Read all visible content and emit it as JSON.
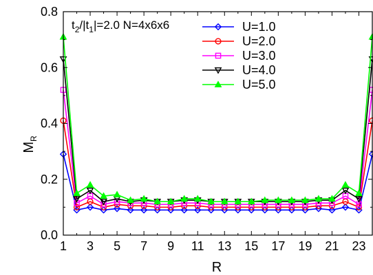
{
  "chart_data": {
    "type": "line",
    "annotation": {
      "t_label": "t",
      "t_sub": "2",
      "mid": "/|t",
      "t1_sub": "1",
      "rest": "|=2.0 N=4x6x6"
    },
    "ylabel_main": "M",
    "ylabel_sub": "R",
    "xlabel": "R",
    "xlim": [
      1,
      24
    ],
    "ylim": [
      0.0,
      0.8
    ],
    "xticks": [
      1,
      3,
      5,
      7,
      9,
      11,
      13,
      15,
      17,
      19,
      21,
      23
    ],
    "yticks": [
      "0.0",
      "0.2",
      "0.4",
      "0.6",
      "0.8"
    ],
    "grid": false,
    "legend_position": "top-right",
    "x": [
      1,
      2,
      3,
      4,
      5,
      6,
      7,
      8,
      9,
      10,
      11,
      12,
      13,
      14,
      15,
      16,
      17,
      18,
      19,
      20,
      21,
      22,
      23,
      24
    ],
    "series": [
      {
        "name": "U=1.0",
        "color": "#0000ff",
        "marker": "diamond",
        "values": [
          0.29,
          0.09,
          0.1,
          0.09,
          0.095,
          0.09,
          0.09,
          0.09,
          0.09,
          0.09,
          0.09,
          0.09,
          0.09,
          0.09,
          0.09,
          0.09,
          0.09,
          0.09,
          0.09,
          0.095,
          0.09,
          0.1,
          0.09,
          0.29
        ]
      },
      {
        "name": "U=2.0",
        "color": "#ff0000",
        "marker": "circle",
        "values": [
          0.41,
          0.1,
          0.12,
          0.1,
          0.11,
          0.105,
          0.105,
          0.1,
          0.1,
          0.105,
          0.105,
          0.1,
          0.1,
          0.1,
          0.1,
          0.1,
          0.1,
          0.1,
          0.1,
          0.105,
          0.105,
          0.12,
          0.1,
          0.41
        ]
      },
      {
        "name": "U=3.0",
        "color": "#ff00ff",
        "marker": "square",
        "values": [
          0.52,
          0.115,
          0.14,
          0.11,
          0.12,
          0.115,
          0.115,
          0.11,
          0.11,
          0.115,
          0.115,
          0.11,
          0.11,
          0.11,
          0.11,
          0.11,
          0.11,
          0.11,
          0.11,
          0.115,
          0.115,
          0.14,
          0.11,
          0.52
        ]
      },
      {
        "name": "U=4.0",
        "color": "#000000",
        "marker": "triangle-down",
        "values": [
          0.63,
          0.13,
          0.16,
          0.12,
          0.13,
          0.12,
          0.125,
          0.12,
          0.12,
          0.125,
          0.125,
          0.12,
          0.12,
          0.12,
          0.12,
          0.12,
          0.12,
          0.12,
          0.12,
          0.125,
          0.125,
          0.16,
          0.13,
          0.63
        ]
      },
      {
        "name": "U=5.0",
        "color": "#00ff00",
        "marker": "triangle-up",
        "values": [
          0.71,
          0.15,
          0.18,
          0.14,
          0.145,
          0.125,
          0.13,
          0.12,
          0.12,
          0.13,
          0.13,
          0.12,
          0.12,
          0.12,
          0.12,
          0.125,
          0.125,
          0.125,
          0.125,
          0.13,
          0.13,
          0.18,
          0.15,
          0.71
        ]
      }
    ]
  }
}
